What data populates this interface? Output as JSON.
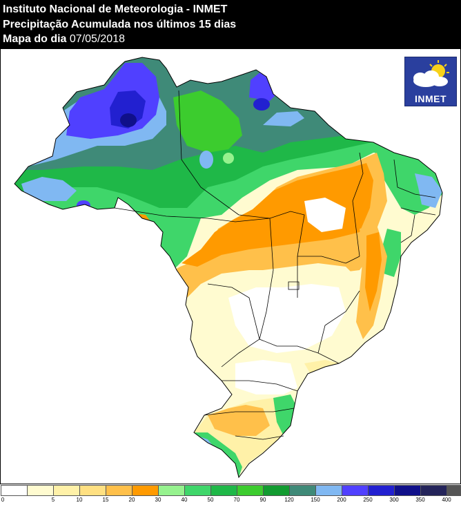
{
  "header": {
    "line1": "Instituto Nacional de Meteorologia - INMET",
    "line2": "Precipitação Acumulada nos últimos 15 dias",
    "line3_label": "Mapa do dia",
    "line3_date": "07/05/2018"
  },
  "logo": {
    "text": "INMET",
    "icon": "cloud-sun-icon"
  },
  "legend": {
    "colors": [
      "#ffffff",
      "#fffbd0",
      "#fff1a8",
      "#ffe082",
      "#ffc04a",
      "#ff9a00",
      "#96f28e",
      "#3fd66a",
      "#1fb848",
      "#3ccc2e",
      "#129b30",
      "#3f8a78",
      "#80b8f2",
      "#5040ff",
      "#2220d0",
      "#10108a",
      "#24245a",
      "#555555"
    ],
    "ticks": [
      "0",
      "5",
      "10",
      "15",
      "20",
      "30",
      "40",
      "50",
      "70",
      "90",
      "120",
      "150",
      "200",
      "250",
      "300",
      "350",
      "400"
    ]
  }
}
